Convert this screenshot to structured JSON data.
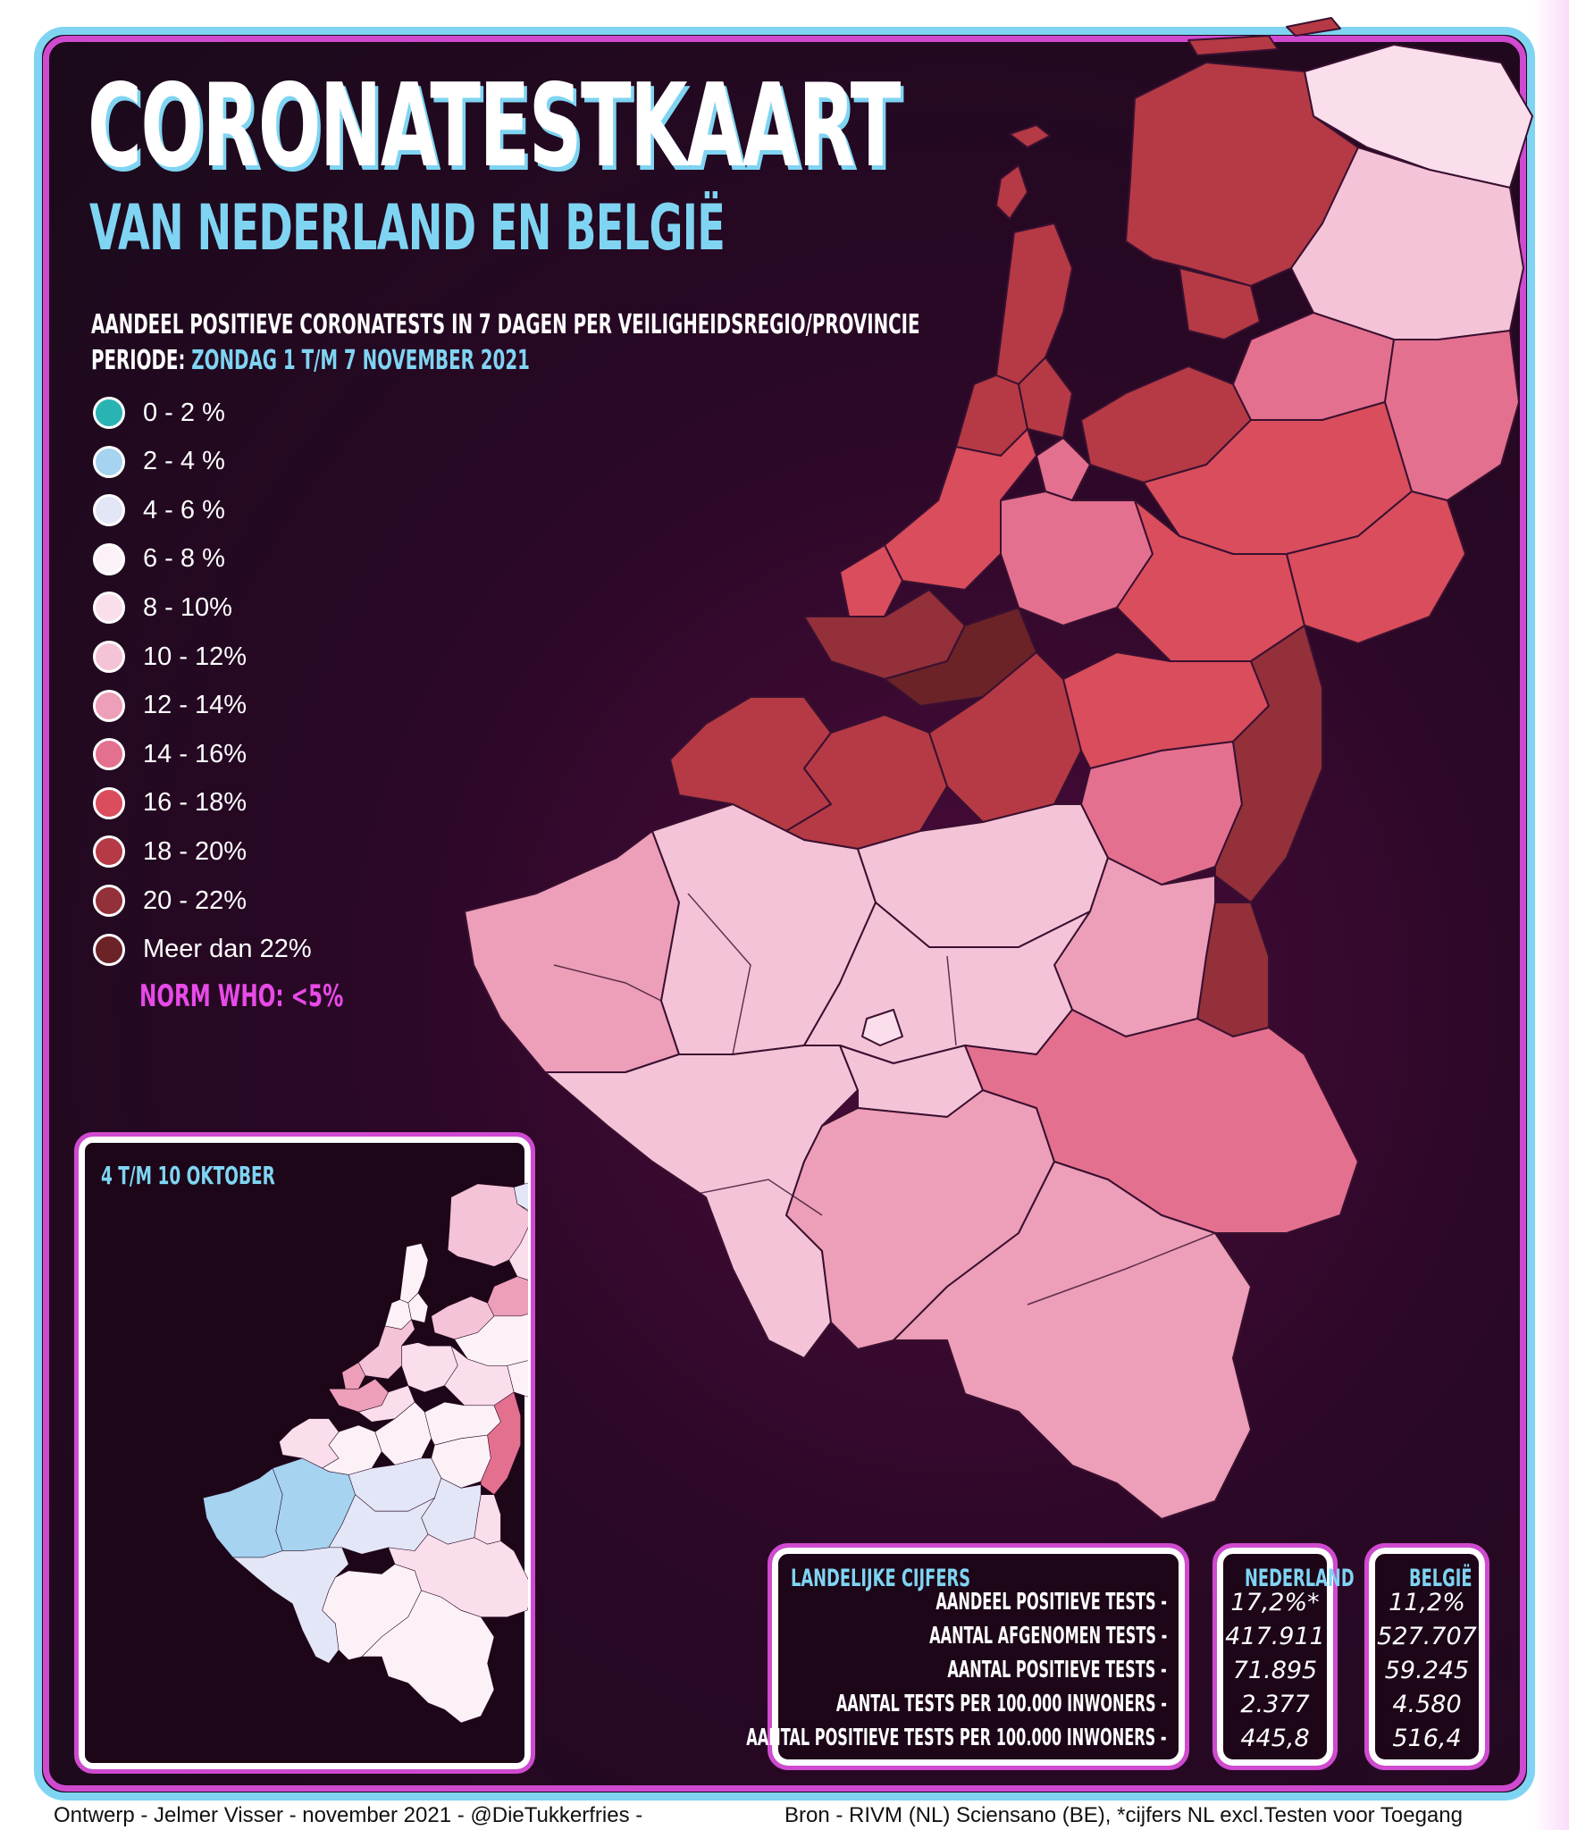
{
  "title": "CORONATESTKAART",
  "subtitle": "VAN NEDERLAND EN BELGIË",
  "description": "AANDEEL POSITIEVE CORONATESTS IN 7 DAGEN PER VEILIGHEIDSREGIO/PROVINCIE",
  "period_label": "PERIODE:",
  "period_value": "ZONDAG 1 T/M 7 NOVEMBER 2021",
  "legend": [
    {
      "label": "0  -  2 %",
      "color": "#2ab3b3"
    },
    {
      "label": "2  -  4 %",
      "color": "#a5d3f0"
    },
    {
      "label": "4  -  6 %",
      "color": "#e3e6f7"
    },
    {
      "label": "6  -  8 %",
      "color": "#fdf1f8"
    },
    {
      "label": "8  - 10%",
      "color": "#fadeeb"
    },
    {
      "label": "10 - 12%",
      "color": "#f5c3d7"
    },
    {
      "label": "12 - 14%",
      "color": "#ed9eb8"
    },
    {
      "label": "14 - 16%",
      "color": "#e4708f"
    },
    {
      "label": "16 - 18%",
      "color": "#d94d5c"
    },
    {
      "label": "18 - 20%",
      "color": "#b53a45"
    },
    {
      "label": "20 - 22%",
      "color": "#93303a"
    },
    {
      "label": "Meer dan 22%",
      "color": "#6b2328"
    }
  ],
  "norm": "NORM WHO: <5%",
  "inset_title": "4 T/M 10 OKTOBER",
  "stats": {
    "title": "LANDELIJKE CIJFERS",
    "col_nl": "NEDERLAND",
    "col_be": "BELGIË",
    "rows": [
      {
        "label": "AANDEEL POSITIEVE TESTS -",
        "nl": "17,2%*",
        "be": "11,2%"
      },
      {
        "label": "AANTAL AFGENOMEN TESTS -",
        "nl": "417.911",
        "be": "527.707"
      },
      {
        "label": "AANTAL POSITIEVE TESTS -",
        "nl": "71.895",
        "be": "59.245"
      },
      {
        "label": "AANTAL TESTS PER 100.000 INWONERS -",
        "nl": "2.377",
        "be": "4.580"
      },
      {
        "label": "AANTAL POSITIEVE TESTS PER 100.000 INWONERS -",
        "nl": "445,8",
        "be": "516,4"
      }
    ]
  },
  "footer_left": "Ontwerp - Jelmer Visser - november 2021 - @DieTukkerfries -",
  "footer_right": "Bron - RIVM (NL) Sciensano (BE), *cijfers NL excl.Testen voor Toegang"
}
